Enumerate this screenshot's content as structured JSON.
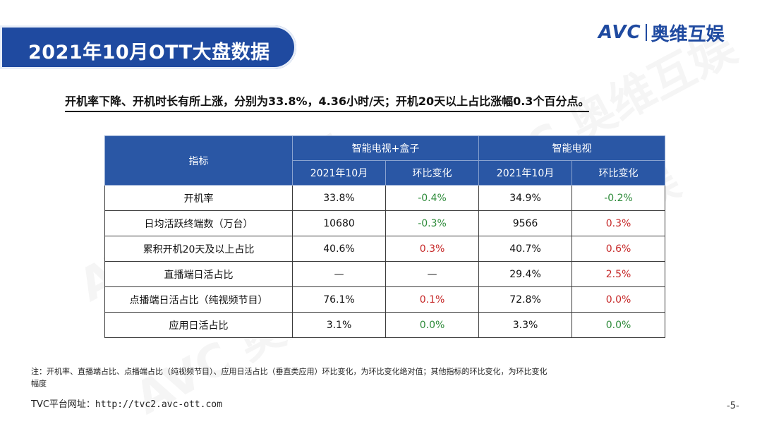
{
  "title": "2021年10月OTT大盘数据",
  "logo": {
    "brand": "AVC",
    "name_cn": "奥维互娱"
  },
  "subtitle": "开机率下降、开机时长有所上涨，分别为33.8%，4.36小时/天；开机20天以上占比涨幅0.3个百分点。",
  "table": {
    "header": {
      "indicator": "指标",
      "group1": "智能电视+盒子",
      "group2": "智能电视",
      "month_label": "2021年10月",
      "change_label": "环比变化"
    },
    "rows": [
      {
        "name": "开机率",
        "g1_value": "33.8%",
        "g1_change": "-0.4%",
        "g2_value": "34.9%",
        "g2_change": "-0.2%"
      },
      {
        "name": "日均活跃终端数（万台）",
        "g1_value": "10680",
        "g1_change": "-0.3%",
        "g2_value": "9566",
        "g2_change": "0.3%"
      },
      {
        "name": "累积开机20天及以上占比",
        "g1_value": "40.6%",
        "g1_change": "0.3%",
        "g2_value": "40.7%",
        "g2_change": "0.6%"
      },
      {
        "name": "直播端日活占比",
        "g1_value": "—",
        "g1_change": "—",
        "g2_value": "29.4%",
        "g2_change": "2.5%"
      },
      {
        "name": "点播端日活占比（纯视频节目）",
        "g1_value": "76.1%",
        "g1_change": "0.1%",
        "g2_value": "72.8%",
        "g2_change": "0.0%"
      },
      {
        "name": "应用日活占比",
        "g1_value": "3.1%",
        "g1_change": "0.0%",
        "g2_value": "3.3%",
        "g2_change": "0.0%"
      }
    ]
  },
  "note": "注：开机率、直播端占比、点播端占比（纯视频节目）、应用日活占比（垂直类应用）环比变化，为环比变化绝对值；其他指标的环比变化，为环比变化幅度",
  "website": {
    "label": "TVC平台网址：",
    "url": "http://tvc2.avc-ott.com"
  },
  "page_number": "-5-",
  "watermark_text": "AVC 奥维互娱",
  "colors": {
    "brand_blue": "#1f4aa0",
    "header_blue": "#2a57a5",
    "up_red": "#c62828",
    "down_green": "#2e8b3a"
  }
}
